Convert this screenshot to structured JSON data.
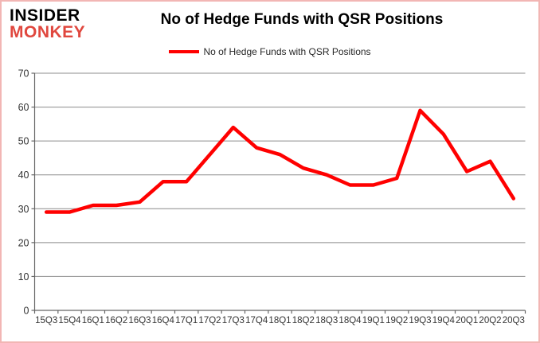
{
  "logo": {
    "line1": "INSIDER",
    "line2": "MONKEY"
  },
  "header": {
    "title": "No of Hedge Funds with QSR Positions"
  },
  "legend": {
    "label": "No of Hedge Funds with QSR Positions"
  },
  "colors": {
    "series_red": "#ff0000",
    "logo_red": "#e0473e",
    "frame_border_pink": "#f2b6b4",
    "gridline_gray": "#8c8c8c",
    "axis_gray": "#666666",
    "tick_label_color": "#333333"
  },
  "chart_data": {
    "type": "line",
    "title": "No of Hedge Funds with QSR Positions",
    "categories": [
      "15Q3",
      "15Q4",
      "16Q1",
      "16Q2",
      "16Q3",
      "16Q4",
      "17Q1",
      "17Q2",
      "17Q3",
      "17Q4",
      "18Q1",
      "18Q2",
      "18Q3",
      "18Q4",
      "19Q1",
      "19Q2",
      "19Q3",
      "19Q4",
      "20Q1",
      "20Q2",
      "20Q3"
    ],
    "series": [
      {
        "name": "No of Hedge Funds with QSR Positions",
        "color": "#ff0000",
        "values": [
          29,
          29,
          31,
          31,
          32,
          38,
          38,
          46,
          54,
          48,
          46,
          42,
          40,
          37,
          37,
          39,
          59,
          52,
          41,
          44,
          33
        ]
      }
    ],
    "xlabel": "",
    "ylabel": "",
    "ylim": [
      0,
      70
    ],
    "yticks": [
      0,
      10,
      20,
      30,
      40,
      50,
      60,
      70
    ],
    "grid": true,
    "legend_position": "top-center"
  }
}
